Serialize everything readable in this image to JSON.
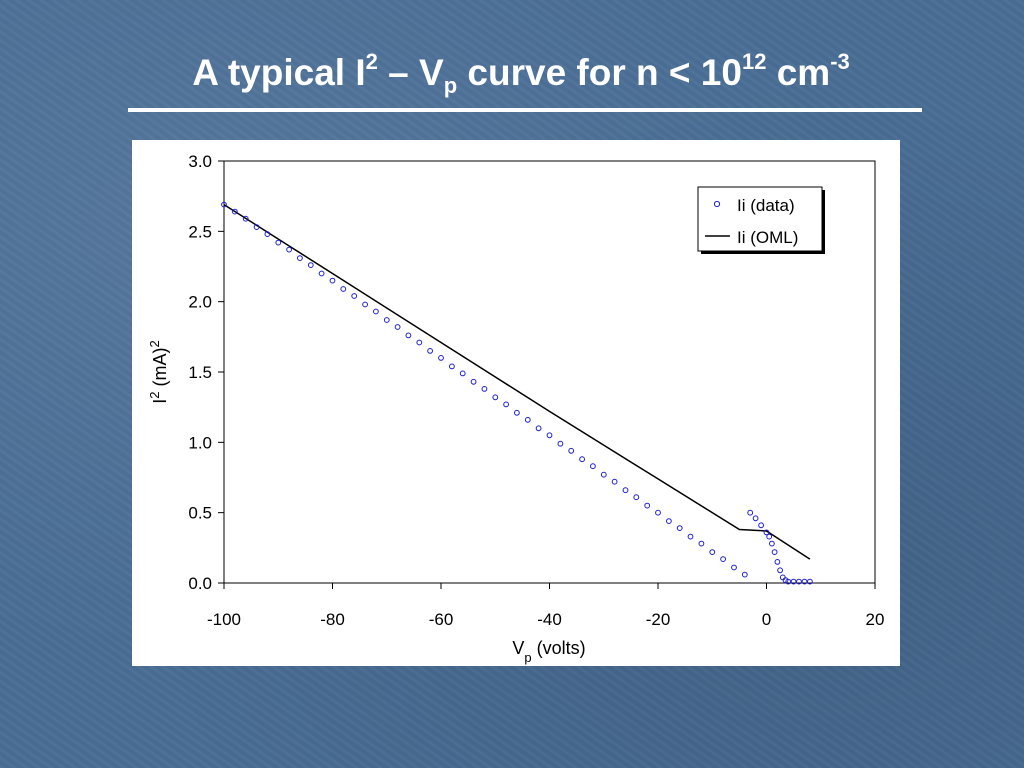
{
  "slide": {
    "title_main": "A typical I",
    "title_sup1": "2",
    "title_dash": " – V",
    "title_sub": "p",
    "title_rest": " curve for n < 10",
    "title_sup2": "12",
    "title_unit": " cm",
    "title_sup3": "-3"
  },
  "colors": {
    "background": "#4a6e96",
    "data_marker": "#1f1fd1",
    "fit_line": "#000000"
  },
  "chart_data": {
    "type": "scatter",
    "xlabel_main": "V",
    "xlabel_sub": "p",
    "xlabel_rest": " (volts)",
    "ylabel_main": "I",
    "ylabel_sup1": "2",
    "ylabel_rest": " (mA)",
    "ylabel_sup2": "2",
    "xlim": [
      -100,
      20
    ],
    "ylim": [
      0,
      3
    ],
    "x_ticks": [
      -100,
      -80,
      -60,
      -40,
      -20,
      0,
      20
    ],
    "y_ticks": [
      0,
      0.5,
      1,
      1.5,
      2,
      2.5,
      3
    ],
    "x_tick_labels": [
      "-100",
      "-80",
      "-60",
      "-40",
      "-20",
      "0",
      "20"
    ],
    "y_tick_labels": [
      "0.0",
      "0.5",
      "1.0",
      "1.5",
      "2.0",
      "2.5",
      "3.0"
    ],
    "grid": false,
    "legend_position": "top-right",
    "series": [
      {
        "name": "Ii (data)",
        "style": "open-circle",
        "x": [
          -100,
          -98,
          -96,
          -94,
          -92,
          -90,
          -88,
          -86,
          -84,
          -82,
          -80,
          -78,
          -76,
          -74,
          -72,
          -70,
          -68,
          -66,
          -64,
          -62,
          -60,
          -58,
          -56,
          -54,
          -52,
          -50,
          -48,
          -46,
          -44,
          -42,
          -40,
          -38,
          -36,
          -34,
          -32,
          -30,
          -28,
          -26,
          -24,
          -22,
          -20,
          -18,
          -16,
          -14,
          -12,
          -10,
          -8,
          -6,
          -4,
          -3,
          -2,
          -1,
          0,
          0.5,
          1,
          1.5,
          2,
          2.5,
          3,
          3.5,
          4,
          5,
          6,
          7,
          8
        ],
        "y": [
          2.69,
          2.64,
          2.59,
          2.53,
          2.48,
          2.42,
          2.37,
          2.31,
          2.26,
          2.2,
          2.15,
          2.09,
          2.04,
          1.98,
          1.93,
          1.87,
          1.82,
          1.76,
          1.71,
          1.65,
          1.6,
          1.54,
          1.49,
          1.43,
          1.38,
          1.32,
          1.27,
          1.21,
          1.16,
          1.1,
          1.05,
          0.99,
          0.94,
          0.88,
          0.83,
          0.77,
          0.72,
          0.66,
          0.61,
          0.55,
          0.5,
          0.44,
          0.39,
          0.33,
          0.28,
          0.22,
          0.17,
          0.11,
          0.06,
          0.5,
          0.46,
          0.41,
          0.36,
          0.33,
          0.28,
          0.22,
          0.15,
          0.09,
          0.04,
          0.02,
          0.01,
          0.01,
          0.01,
          0.01,
          0.01
        ]
      },
      {
        "name": "Ii (OML)",
        "style": "line",
        "x": [
          -100,
          -80,
          -60,
          -40,
          -20,
          -5,
          0,
          8
        ],
        "y": [
          2.69,
          2.2,
          1.71,
          1.22,
          0.74,
          0.38,
          0.37,
          0.17
        ]
      }
    ]
  }
}
